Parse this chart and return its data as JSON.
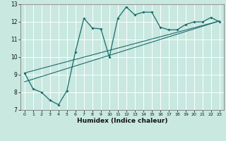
{
  "title": "",
  "xlabel": "Humidex (Indice chaleur)",
  "bg_color": "#c8e8e0",
  "grid_color": "#ffffff",
  "line_color": "#1a6b6b",
  "xlim": [
    -0.5,
    23.5
  ],
  "ylim": [
    7,
    13
  ],
  "xticks": [
    0,
    1,
    2,
    3,
    4,
    5,
    6,
    7,
    8,
    9,
    10,
    11,
    12,
    13,
    14,
    15,
    16,
    17,
    18,
    19,
    20,
    21,
    22,
    23
  ],
  "yticks": [
    7,
    8,
    9,
    10,
    11,
    12,
    13
  ],
  "curve_x": [
    0,
    1,
    2,
    3,
    4,
    5,
    6,
    7,
    8,
    9,
    10,
    11,
    12,
    13,
    14,
    15,
    16,
    17,
    18,
    19,
    20,
    21,
    22,
    23
  ],
  "curve_y": [
    9.1,
    8.2,
    8.0,
    7.55,
    7.3,
    8.1,
    10.3,
    12.2,
    11.65,
    11.6,
    10.0,
    12.2,
    12.85,
    12.4,
    12.55,
    12.55,
    11.7,
    11.55,
    11.55,
    11.85,
    12.0,
    12.0,
    12.25,
    12.0
  ],
  "line1_x": [
    0,
    23
  ],
  "line1_y": [
    8.6,
    12.05
  ],
  "line2_x": [
    0,
    23
  ],
  "line2_y": [
    9.1,
    12.05
  ]
}
